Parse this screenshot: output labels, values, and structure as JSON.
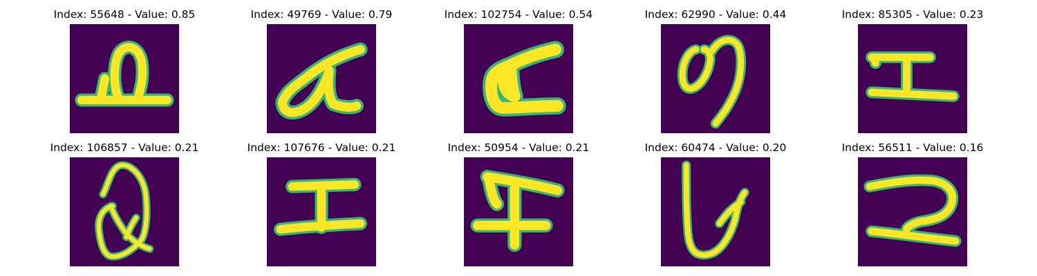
{
  "panels": [
    {
      "title": "Index: 55648 - Value: 0.85",
      "index": 55648,
      "value": 0.85,
      "glyph": "handwritten-character"
    },
    {
      "title": "Index: 49769 - Value: 0.79",
      "index": 49769,
      "value": 0.79,
      "glyph": "handwritten-character"
    },
    {
      "title": "Index: 102754 - Value: 0.54",
      "index": 102754,
      "value": 0.54,
      "glyph": "handwritten-character"
    },
    {
      "title": "Index: 62990 - Value: 0.44",
      "index": 62990,
      "value": 0.44,
      "glyph": "handwritten-character"
    },
    {
      "title": "Index: 85305 - Value: 0.23",
      "index": 85305,
      "value": 0.23,
      "glyph": "handwritten-character"
    },
    {
      "title": "Index: 106857 - Value: 0.21",
      "index": 106857,
      "value": 0.21,
      "glyph": "handwritten-character"
    },
    {
      "title": "Index: 107676 - Value: 0.21",
      "index": 107676,
      "value": 0.21,
      "glyph": "handwritten-character"
    },
    {
      "title": "Index: 50954 - Value: 0.21",
      "index": 50954,
      "value": 0.21,
      "glyph": "handwritten-character"
    },
    {
      "title": "Index: 60474 - Value: 0.20",
      "index": 60474,
      "value": 0.2,
      "glyph": "handwritten-character"
    },
    {
      "title": "Index: 56511 - Value: 0.16",
      "index": 56511,
      "value": 0.16,
      "glyph": "handwritten-character"
    }
  ],
  "colors": {
    "background": "#440154",
    "stroke": "#fde725",
    "edge": "#35b779"
  }
}
